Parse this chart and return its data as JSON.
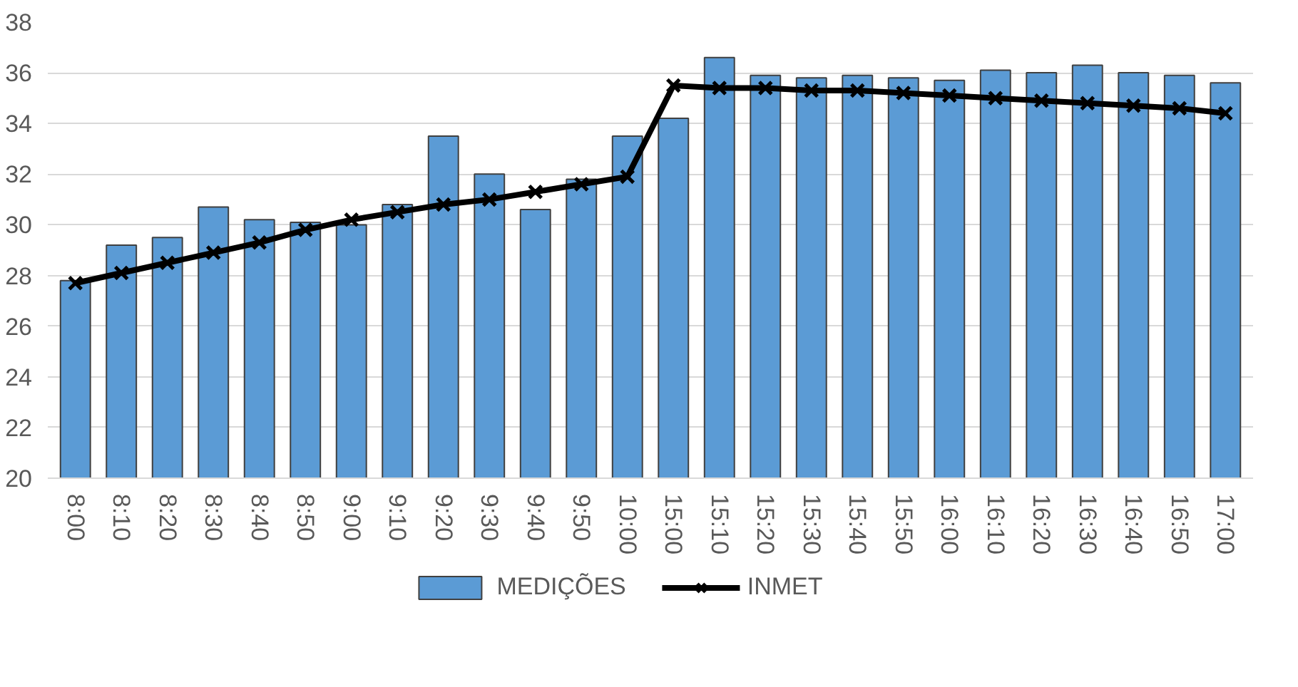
{
  "chart_data": {
    "type": "bar",
    "categories": [
      "8:00",
      "8:10",
      "8:20",
      "8:30",
      "8:40",
      "8:50",
      "9:00",
      "9:10",
      "9:20",
      "9:30",
      "9:40",
      "9:50",
      "10:00",
      "15:00",
      "15:10",
      "15:20",
      "15:30",
      "15:40",
      "15:50",
      "16:00",
      "16:10",
      "16:20",
      "16:30",
      "16:40",
      "16:50",
      "17:00"
    ],
    "series": [
      {
        "name": "MEDIÇÕES",
        "color": "#5b9bd5",
        "values": [
          27.8,
          29.2,
          29.5,
          30.7,
          30.2,
          30.1,
          30.0,
          30.8,
          33.5,
          32.0,
          30.6,
          31.8,
          33.5,
          34.2,
          36.6,
          35.9,
          35.8,
          35.9,
          35.8,
          35.7,
          36.1,
          36.0,
          36.3,
          36.0,
          35.9,
          35.6
        ]
      },
      {
        "name": "INMET",
        "type": "line",
        "color": "#000000",
        "marker": "cross",
        "values": [
          27.7,
          28.1,
          28.5,
          28.9,
          29.3,
          29.8,
          30.2,
          30.5,
          30.8,
          31.0,
          31.3,
          31.6,
          31.9,
          35.5,
          35.4,
          35.4,
          35.3,
          35.3,
          35.2,
          35.1,
          35.0,
          34.9,
          34.8,
          34.7,
          34.6,
          34.4
        ]
      }
    ],
    "ylim": [
      20,
      38
    ],
    "yticks": [
      20,
      22,
      24,
      26,
      28,
      30,
      32,
      34,
      36,
      38
    ],
    "grid": "y",
    "legend": "bottom"
  }
}
